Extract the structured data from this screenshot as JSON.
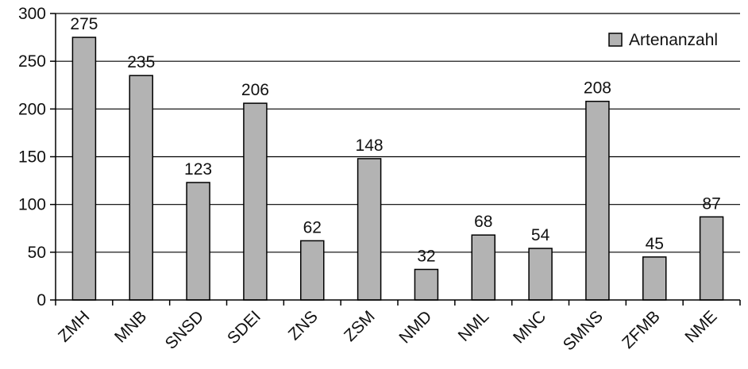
{
  "chart_data": {
    "type": "bar",
    "categories": [
      "ZMH",
      "MNB",
      "SNSD",
      "SDEI",
      "ZNS",
      "ZSM",
      "NMD",
      "NML",
      "MNC",
      "SMNS",
      "ZFMB",
      "NME"
    ],
    "series": [
      {
        "name": "Artenanzahl",
        "values": [
          275,
          235,
          123,
          206,
          62,
          148,
          32,
          68,
          54,
          208,
          45,
          87
        ]
      }
    ],
    "data_labels": [
      "275",
      "235",
      "123",
      "206",
      "62",
      "148",
      "32",
      "68",
      "54",
      "208",
      "45",
      "87"
    ],
    "yticks": [
      0,
      50,
      100,
      150,
      200,
      250,
      300
    ],
    "ylim": [
      0,
      300
    ],
    "title": "",
    "xlabel": "",
    "ylabel": "",
    "grid": true,
    "legend_position": "top-right",
    "colors": {
      "bar_fill": "#b3b3b3",
      "bar_stroke": "#000000",
      "grid": "#000000",
      "background": "#ffffff"
    }
  }
}
